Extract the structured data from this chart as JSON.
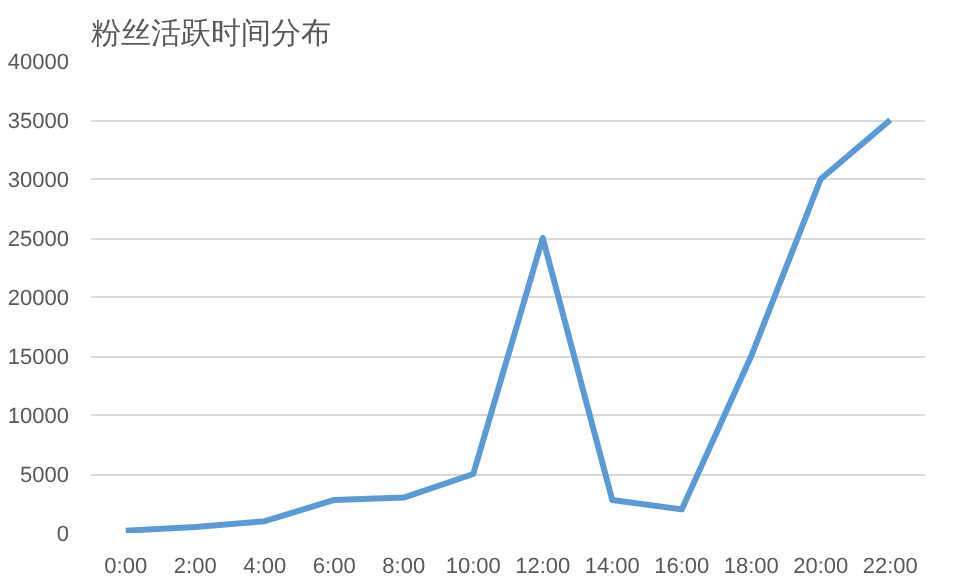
{
  "chart_data": {
    "type": "line",
    "title": "粉丝活跃时间分布",
    "categories": [
      "0:00",
      "2:00",
      "4:00",
      "6:00",
      "8:00",
      "10:00",
      "12:00",
      "14:00",
      "16:00",
      "18:00",
      "20:00",
      "22:00"
    ],
    "series": [
      {
        "color": "#5b9bd5",
        "values": [
          200,
          500,
          1000,
          2800,
          3000,
          5000,
          25000,
          2800,
          2000,
          15000,
          30000,
          35000
        ]
      }
    ],
    "ylim": [
      0,
      40000
    ],
    "yticks": [
      0,
      5000,
      10000,
      15000,
      20000,
      25000,
      30000,
      35000,
      40000
    ],
    "grid": "y",
    "marker": "none",
    "line_style": "solid"
  }
}
